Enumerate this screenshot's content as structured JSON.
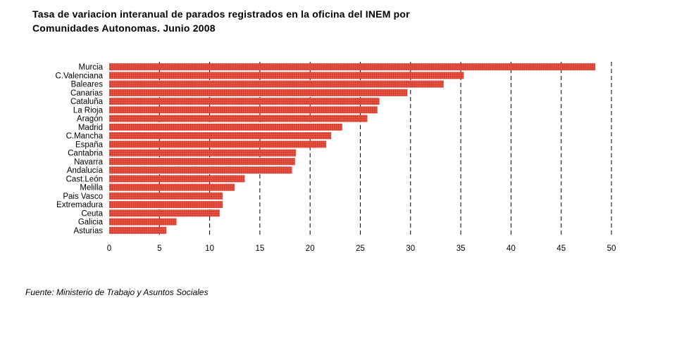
{
  "title": {
    "line1": "Tasa de variacion interanual de parados registrados en la oficina del INEM por",
    "line2": "Comunidades Autonomas. Junio 2008"
  },
  "source": "Fuente: Ministerio de Trabajo y Asuntos Sociales",
  "chart_data": {
    "type": "bar",
    "orientation": "horizontal",
    "categories": [
      "Murcia",
      "C.Valenciana",
      "Baleares",
      "Canarias",
      "Cataluña",
      "La Rioja",
      "Aragón",
      "Madrid",
      "C.Mancha",
      "España",
      "Cantabria",
      "Navarra",
      "Andalucía",
      "Cast.León",
      "Melilla",
      "Pais Vasco",
      "Extremadura",
      "Ceuta",
      "Galicia",
      "Asturias"
    ],
    "values": [
      48.4,
      35.3,
      33.3,
      29.7,
      26.9,
      26.7,
      25.7,
      23.2,
      22.1,
      21.6,
      18.6,
      18.5,
      18.2,
      13.5,
      12.5,
      11.3,
      11.3,
      11.0,
      6.7,
      5.7
    ],
    "xlim": [
      0,
      50
    ],
    "xticks": [
      "0",
      "5",
      "10",
      "15",
      "20",
      "25",
      "30",
      "35",
      "40",
      "45",
      "50"
    ],
    "grid": "vertical dashed",
    "bar_color": "#e0483a"
  }
}
